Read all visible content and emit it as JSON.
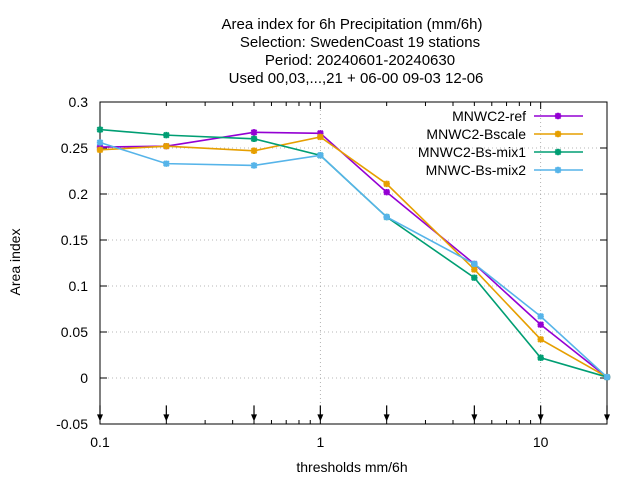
{
  "chart_data": {
    "type": "line",
    "title_lines": [
      "Area index  for 6h Precipitation (mm/6h)",
      "Selection: SwedenCoast     19 stations",
      "Period: 20240601-20240630",
      "Used 00,03,...,21 + 06-00 09-03 12-06"
    ],
    "xlabel": "thresholds mm/6h",
    "ylabel": "Area index",
    "x_scale": "log",
    "xlim": [
      0.1,
      20
    ],
    "ylim": [
      -0.05,
      0.3
    ],
    "x_ticks": [
      {
        "value": 0.1,
        "label": "0.1"
      },
      {
        "value": 1,
        "label": "1"
      },
      {
        "value": 10,
        "label": "10"
      }
    ],
    "y_ticks": [
      {
        "value": 0.3,
        "label": "0.3"
      },
      {
        "value": 0.25,
        "label": "0.25"
      },
      {
        "value": 0.2,
        "label": "0.2"
      },
      {
        "value": 0.15,
        "label": "0.15"
      },
      {
        "value": 0.1,
        "label": "0.1"
      },
      {
        "value": 0.05,
        "label": "0.05"
      },
      {
        "value": 0,
        "label": "0"
      },
      {
        "value": -0.05,
        "label": "-0.05"
      }
    ],
    "grid": true,
    "legend_position": "top-right",
    "threshold_marker_y": -0.045,
    "x": [
      0.1,
      0.2,
      0.5,
      1,
      2,
      5,
      10,
      20
    ],
    "series": [
      {
        "name": "MNWC2-ref",
        "color": "#9400d3",
        "values": [
          0.251,
          0.252,
          0.267,
          0.266,
          0.202,
          0.124,
          0.058,
          0.001
        ]
      },
      {
        "name": "MNWC2-Bscale",
        "color": "#e69f00",
        "values": [
          0.248,
          0.252,
          0.247,
          0.262,
          0.211,
          0.118,
          0.042,
          0.001
        ]
      },
      {
        "name": "MNWC2-Bs-mix1",
        "color": "#009e73",
        "values": [
          0.27,
          0.264,
          0.26,
          0.242,
          0.175,
          0.109,
          0.022,
          0.001
        ]
      },
      {
        "name": "MNWC-Bs-mix2",
        "color": "#56b4e9",
        "values": [
          0.256,
          0.233,
          0.231,
          0.242,
          0.175,
          0.124,
          0.067,
          0.001
        ]
      }
    ]
  }
}
